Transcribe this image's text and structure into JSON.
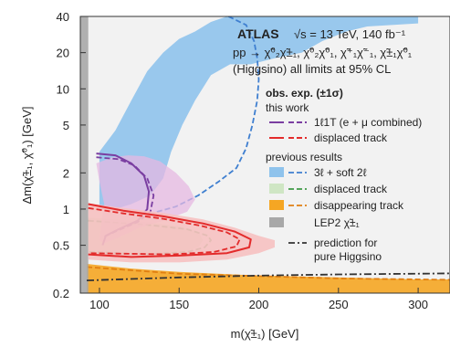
{
  "chart_data": {
    "type": "line",
    "title": "ATLAS",
    "header_lines": [
      "√s = 13 TeV, 140 fb⁻¹",
      "pp → χ̃⁰₂χ̃±₁, χ̃⁰₂χ̃⁰₁, χ̃⁺₁χ̃⁻₁, χ̃±₁χ̃⁰₁",
      "(Higgsino)   all limits at 95% CL"
    ],
    "xlabel": "m(χ̃±₁) [GeV]",
    "ylabel": "Δm(χ̃±₁, χ̃⁰₁) [GeV]",
    "xlim": [
      88,
      320
    ],
    "ylim": [
      0.2,
      40
    ],
    "y_scale": "log",
    "x_ticks": [
      100,
      150,
      200,
      250,
      300
    ],
    "x_tick_labels": [
      "100",
      "150",
      "200",
      "250",
      "300"
    ],
    "y_ticks": [
      0.2,
      0.5,
      1,
      2,
      5,
      10,
      20,
      40
    ],
    "y_tick_labels": [
      "0.2",
      "0.5",
      "1",
      "2",
      "5",
      "10",
      "20",
      "40"
    ],
    "legend": {
      "heading": "obs. exp. (±1σ)",
      "this_work_label": "this work",
      "previous_label": "previous results",
      "entries": [
        {
          "label": "1ℓ1T (e + μ combined)",
          "group": "this work",
          "color": "#7a3ea1"
        },
        {
          "label": "displaced track",
          "group": "this work",
          "color": "#e32b2b"
        },
        {
          "label": "3ℓ + soft 2ℓ",
          "group": "previous",
          "color": "#4a90d9"
        },
        {
          "label": "displaced track",
          "group": "previous",
          "color": "#3f9a46"
        },
        {
          "label": "disappearing track",
          "group": "previous",
          "color": "#f2a21b"
        },
        {
          "label": "LEP2 χ̃±₁",
          "group": "previous",
          "color": "#9a9a9a"
        },
        {
          "label": "prediction for",
          "label2": "pure Higgsino",
          "group": "previous",
          "color": "#333333"
        }
      ]
    },
    "series": [
      {
        "name": "3ℓ + soft 2ℓ",
        "kind": "band",
        "color": "#8fc3ec",
        "points": [
          [
            100,
            3
          ],
          [
            110,
            4.5
          ],
          [
            120,
            8
          ],
          [
            130,
            14
          ],
          [
            140,
            20
          ],
          [
            150,
            26
          ],
          [
            160,
            30
          ],
          [
            170,
            36
          ],
          [
            180,
            40
          ],
          [
            300,
            40
          ],
          [
            300,
            35
          ],
          [
            268,
            33
          ],
          [
            255,
            30
          ],
          [
            240,
            25
          ],
          [
            227,
            20
          ],
          [
            210,
            18
          ],
          [
            195,
            16
          ],
          [
            182,
            16
          ],
          [
            170,
            13
          ],
          [
            160,
            8
          ],
          [
            152,
            5
          ],
          [
            145,
            3
          ],
          [
            140,
            1.8
          ],
          [
            132,
            1.3
          ],
          [
            120,
            1.1
          ],
          [
            110,
            1.0
          ],
          [
            100,
            1.0
          ]
        ]
      },
      {
        "name": "3ℓ + soft 2ℓ expected",
        "kind": "expected",
        "color": "#3f7fd0",
        "points": [
          [
            181,
            40
          ],
          [
            192,
            34
          ],
          [
            197,
            25
          ],
          [
            199,
            18
          ],
          [
            200,
            12
          ],
          [
            199,
            8
          ],
          [
            196,
            5
          ],
          [
            192,
            3.2
          ],
          [
            186,
            2.2
          ],
          [
            175,
            1.7
          ],
          [
            162,
            1.3
          ],
          [
            148,
            1.05
          ],
          [
            130,
            0.9
          ]
        ]
      },
      {
        "name": "displaced track (previous)",
        "kind": "band",
        "color": "#cfe6c4",
        "points": [
          [
            93,
            0.85
          ],
          [
            110,
            0.82
          ],
          [
            130,
            0.78
          ],
          [
            150,
            0.72
          ],
          [
            162,
            0.65
          ],
          [
            165,
            0.55
          ],
          [
            162,
            0.48
          ],
          [
            150,
            0.43
          ],
          [
            130,
            0.41
          ],
          [
            110,
            0.41
          ],
          [
            93,
            0.43
          ]
        ]
      },
      {
        "name": "displaced track (previous) expected",
        "kind": "expected",
        "color": "#3f9a46",
        "points": [
          [
            93,
            0.8
          ],
          [
            130,
            0.74
          ],
          [
            155,
            0.68
          ],
          [
            168,
            0.6
          ],
          [
            170,
            0.55
          ],
          [
            166,
            0.48
          ],
          [
            155,
            0.44
          ],
          [
            130,
            0.42
          ],
          [
            93,
            0.44
          ]
        ]
      },
      {
        "name": "disappearing track",
        "kind": "band",
        "color": "#f5a623",
        "points": [
          [
            92,
            0.35
          ],
          [
            120,
            0.32
          ],
          [
            150,
            0.3
          ],
          [
            200,
            0.28
          ],
          [
            250,
            0.27
          ],
          [
            300,
            0.26
          ],
          [
            320,
            0.26
          ],
          [
            320,
            0.2
          ],
          [
            92,
            0.2
          ]
        ]
      },
      {
        "name": "disappearing track expected",
        "kind": "expected",
        "color": "#e07f12",
        "points": [
          [
            92,
            0.33
          ],
          [
            150,
            0.29
          ],
          [
            250,
            0.265
          ],
          [
            320,
            0.258
          ]
        ]
      },
      {
        "name": "LEP2",
        "kind": "band",
        "color": "#a8a8a8",
        "points": [
          [
            88,
            0.2
          ],
          [
            93,
            0.2
          ],
          [
            93,
            40
          ],
          [
            88,
            40
          ]
        ]
      },
      {
        "name": "1ℓ1T band",
        "kind": "band",
        "color": "#e6b8e1",
        "points": [
          [
            98,
            2.4
          ],
          [
            108,
            2.7
          ],
          [
            118,
            2.8
          ],
          [
            128,
            2.75
          ],
          [
            138,
            2.5
          ],
          [
            148,
            2.0
          ],
          [
            156,
            1.55
          ],
          [
            160,
            1.2
          ],
          [
            155,
            0.95
          ],
          [
            140,
            0.8
          ],
          [
            125,
            0.7
          ],
          [
            112,
            0.58
          ],
          [
            103,
            0.52
          ],
          [
            100,
            0.55
          ],
          [
            101,
            0.75
          ],
          [
            103,
            1.1
          ],
          [
            100,
            1.7
          ]
        ]
      },
      {
        "name": "1ℓ1T observed",
        "kind": "observed",
        "color": "#7a3ea1",
        "points": [
          [
            98,
            2.9
          ],
          [
            110,
            2.8
          ],
          [
            120,
            2.4
          ],
          [
            128,
            1.9
          ],
          [
            131,
            1.4
          ],
          [
            130,
            1.0
          ],
          [
            124,
            0.8
          ],
          [
            112,
            0.68
          ],
          [
            104,
            0.6
          ],
          [
            102,
            0.5
          ]
        ]
      },
      {
        "name": "1ℓ1T expected",
        "kind": "expected",
        "color": "#7a3ea1",
        "points": [
          [
            98,
            2.7
          ],
          [
            112,
            2.6
          ],
          [
            122,
            2.3
          ],
          [
            130,
            1.8
          ],
          [
            134,
            1.3
          ],
          [
            132,
            0.95
          ],
          [
            124,
            0.78
          ],
          [
            110,
            0.65
          ],
          [
            102,
            0.58
          ]
        ]
      },
      {
        "name": "displaced track band",
        "kind": "band",
        "color": "#f6c1c1",
        "points": [
          [
            93,
            1.12
          ],
          [
            115,
            1.02
          ],
          [
            140,
            0.93
          ],
          [
            165,
            0.82
          ],
          [
            185,
            0.7
          ],
          [
            200,
            0.6
          ],
          [
            210,
            0.55
          ],
          [
            210,
            0.48
          ],
          [
            200,
            0.43
          ],
          [
            180,
            0.38
          ],
          [
            150,
            0.36
          ],
          [
            120,
            0.36
          ],
          [
            93,
            0.38
          ]
        ]
      },
      {
        "name": "displaced track observed",
        "kind": "observed",
        "color": "#e32b2b",
        "points": [
          [
            93,
            1.1
          ],
          [
            115,
            0.97
          ],
          [
            140,
            0.87
          ],
          [
            165,
            0.76
          ],
          [
            185,
            0.65
          ],
          [
            195,
            0.56
          ],
          [
            194,
            0.48
          ],
          [
            180,
            0.43
          ],
          [
            150,
            0.41
          ],
          [
            120,
            0.4
          ],
          [
            93,
            0.42
          ]
        ]
      },
      {
        "name": "displaced track expected",
        "kind": "expected",
        "color": "#e32b2b",
        "points": [
          [
            93,
            1.02
          ],
          [
            115,
            0.92
          ],
          [
            140,
            0.83
          ],
          [
            163,
            0.73
          ],
          [
            180,
            0.64
          ],
          [
            188,
            0.56
          ],
          [
            186,
            0.49
          ],
          [
            172,
            0.44
          ],
          [
            145,
            0.42
          ],
          [
            93,
            0.43
          ]
        ]
      },
      {
        "name": "prediction for pure Higgsino",
        "kind": "prediction",
        "color": "#333333",
        "points": [
          [
            92,
            0.255
          ],
          [
            150,
            0.27
          ],
          [
            200,
            0.28
          ],
          [
            250,
            0.286
          ],
          [
            320,
            0.292
          ]
        ]
      }
    ]
  }
}
